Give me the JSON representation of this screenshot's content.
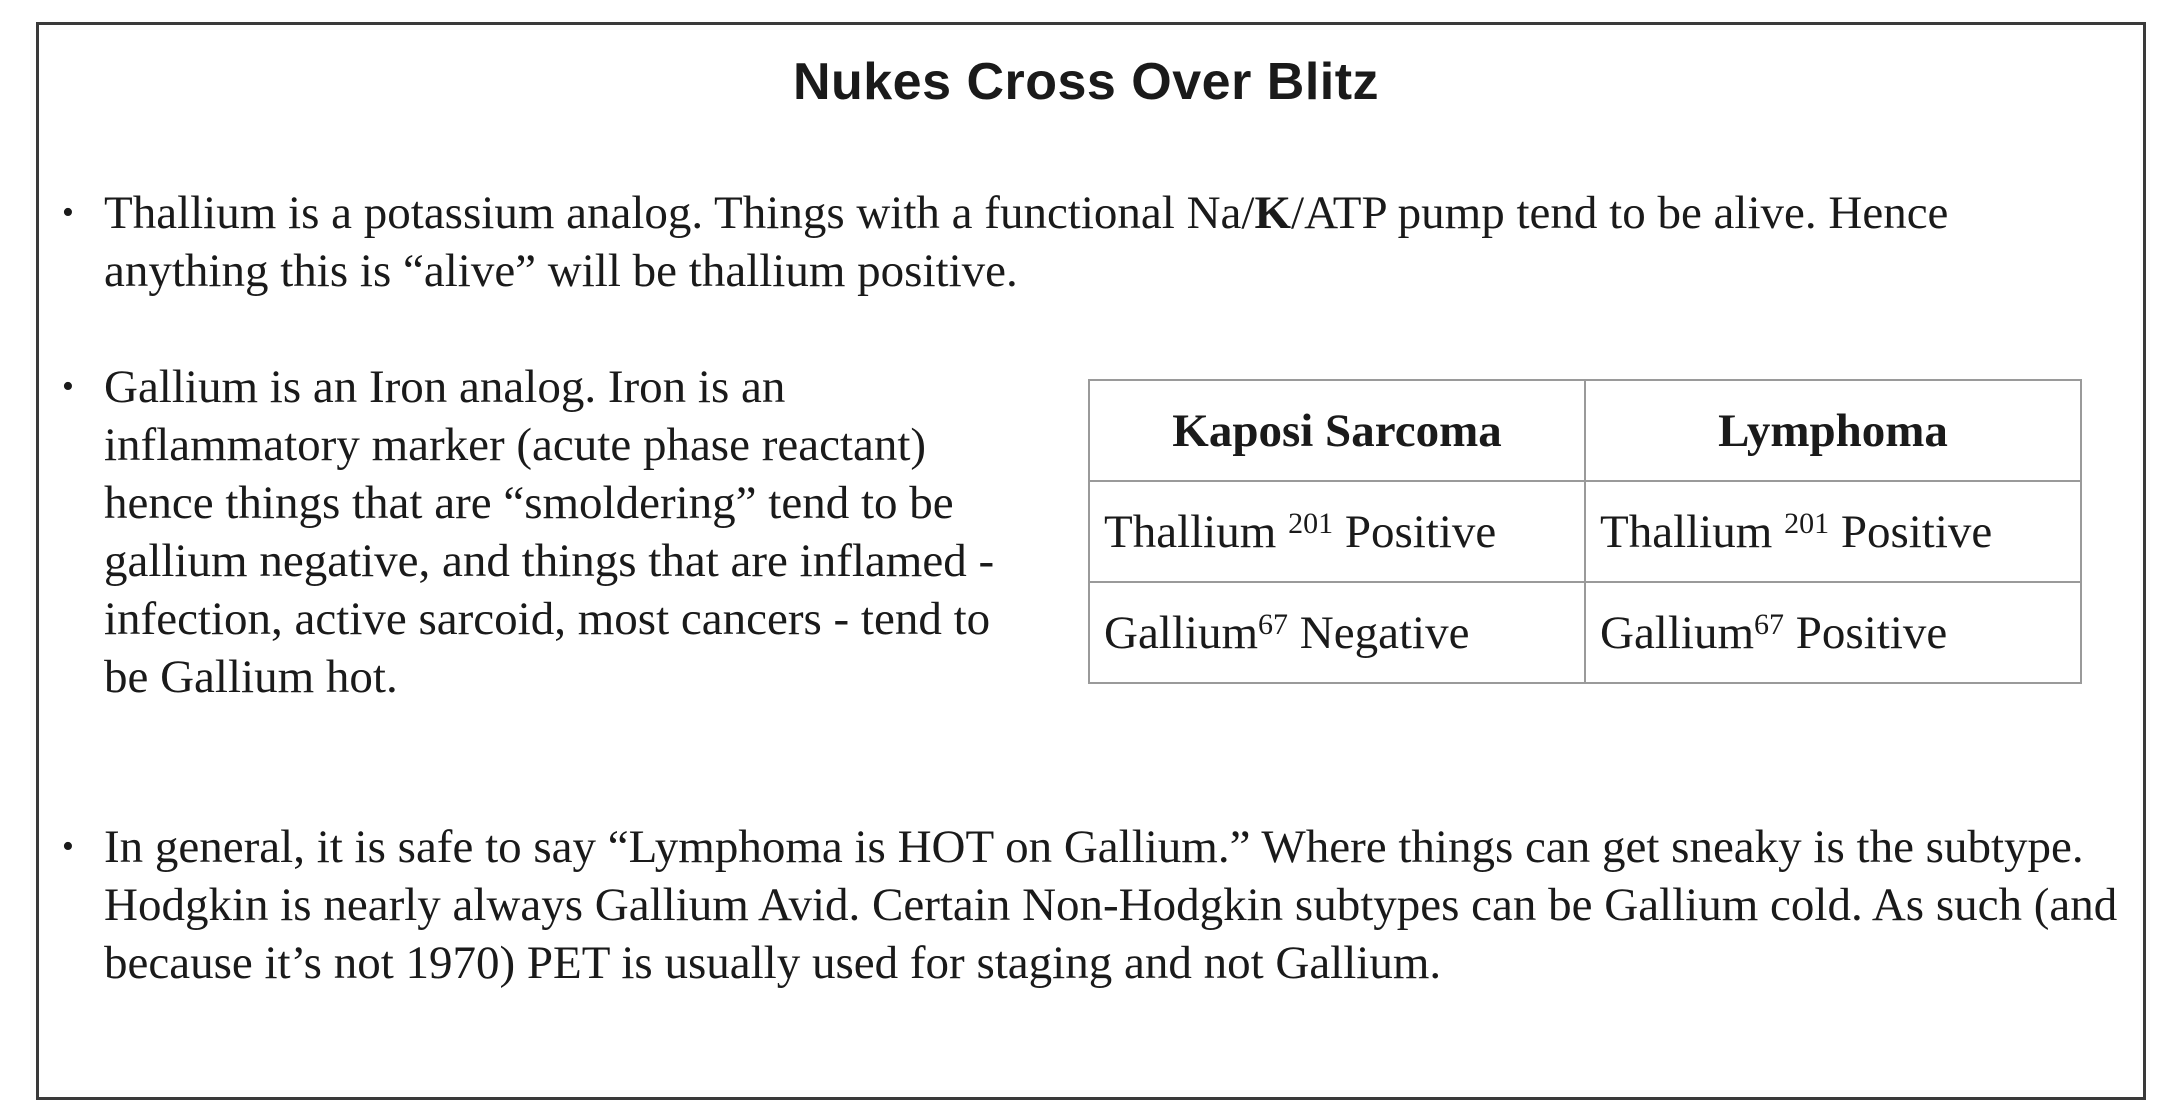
{
  "title": "Nukes Cross Over Blitz",
  "bullet1": {
    "part1": "Thallium is a potassium analog. Things with a functional Na/",
    "bold": "K",
    "part2": "/ATP pump tend to be alive. Hence anything this is “alive” will be thallium positive."
  },
  "bullet2": {
    "text": "Gallium is an Iron analog.  Iron is an inflammatory marker (acute phase reactant) hence things that are “smoldering” tend to be gallium negative, and things that are inflamed - infection, active sarcoid, most cancers - tend to be Gallium hot."
  },
  "bullet3": {
    "text": "In general, it is safe to say “Lymphoma is HOT on Gallium.”  Where things can get sneaky is the subtype.  Hodgkin is nearly always Gallium Avid.  Certain Non-Hodgkin subtypes can be Gallium cold.   As such (and because it’s not 1970) PET is usually used for staging and not Gallium."
  },
  "table": {
    "headers": [
      "Kaposi Sarcoma",
      "Lymphoma"
    ],
    "rows": [
      [
        {
          "element": "Thallium",
          "isotope": "201",
          "result": "Positive"
        },
        {
          "element": "Thallium",
          "isotope": "201",
          "result": "Positive"
        }
      ],
      [
        {
          "element": "Gallium",
          "isotope": "67",
          "result": "Negative"
        },
        {
          "element": "Gallium",
          "isotope": "67",
          "result": "Positive"
        }
      ]
    ]
  }
}
